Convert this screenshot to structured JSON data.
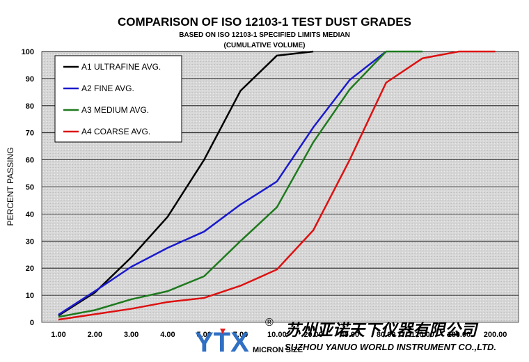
{
  "chart_data": {
    "type": "line",
    "title": "COMPARISON OF ISO 12103-1 TEST DUST GRADES",
    "subtitle_1": "BASED ON ISO 12103-1 SPECIFIED LIMITS MEDIAN",
    "subtitle_2": "(CUMULATIVE VOLUME)",
    "xlabel": "MICRON SIZE",
    "ylabel": "PERCENT PASSING",
    "ylim": [
      0,
      100
    ],
    "yticks": [
      "0",
      "10",
      "20",
      "30",
      "40",
      "50",
      "60",
      "70",
      "80",
      "90",
      "100"
    ],
    "categories": [
      "1.00",
      "2.00",
      "3.00",
      "4.00",
      "5.00",
      "7.00",
      "10.00",
      "20.00",
      "40.00",
      "80.00",
      "120.00",
      "180.00",
      "200.00"
    ],
    "grid": "horizontal",
    "background": "stippled gray",
    "legend_position": "top-left",
    "series": [
      {
        "name": "A1 ULTRAFINE AVG.",
        "color": "#000000",
        "values": [
          2.5,
          11,
          24,
          39,
          60,
          85.5,
          98.5,
          100,
          null,
          null,
          null,
          null,
          null
        ]
      },
      {
        "name": "A2 FINE AVG.",
        "color": "#1a1acc",
        "values": [
          2.8,
          11.5,
          20.5,
          27.5,
          33.5,
          43.5,
          52,
          72,
          89.5,
          100,
          null,
          null,
          null
        ]
      },
      {
        "name": "A3 MEDIUM AVG.",
        "color": "#1e7a1e",
        "values": [
          2,
          4.5,
          8.5,
          11.5,
          17,
          30,
          42.5,
          66.5,
          86,
          100,
          100,
          null,
          null
        ]
      },
      {
        "name": "A4 COARSE AVG.",
        "color": "#dd1111",
        "values": [
          1,
          3,
          5,
          7.5,
          9,
          13.5,
          19.5,
          34,
          60,
          88.5,
          97.5,
          100,
          100
        ]
      }
    ]
  },
  "watermark": {
    "logo_text": "YTX",
    "registered_mark": "®",
    "company_cn": "苏州亚诺天下仪器有限公司",
    "company_en": "SUZHOU YANUO WORLD INSTRUMENT CO.,LTD.",
    "logo_colors": [
      "#2f6fc4",
      "#e02020"
    ]
  }
}
